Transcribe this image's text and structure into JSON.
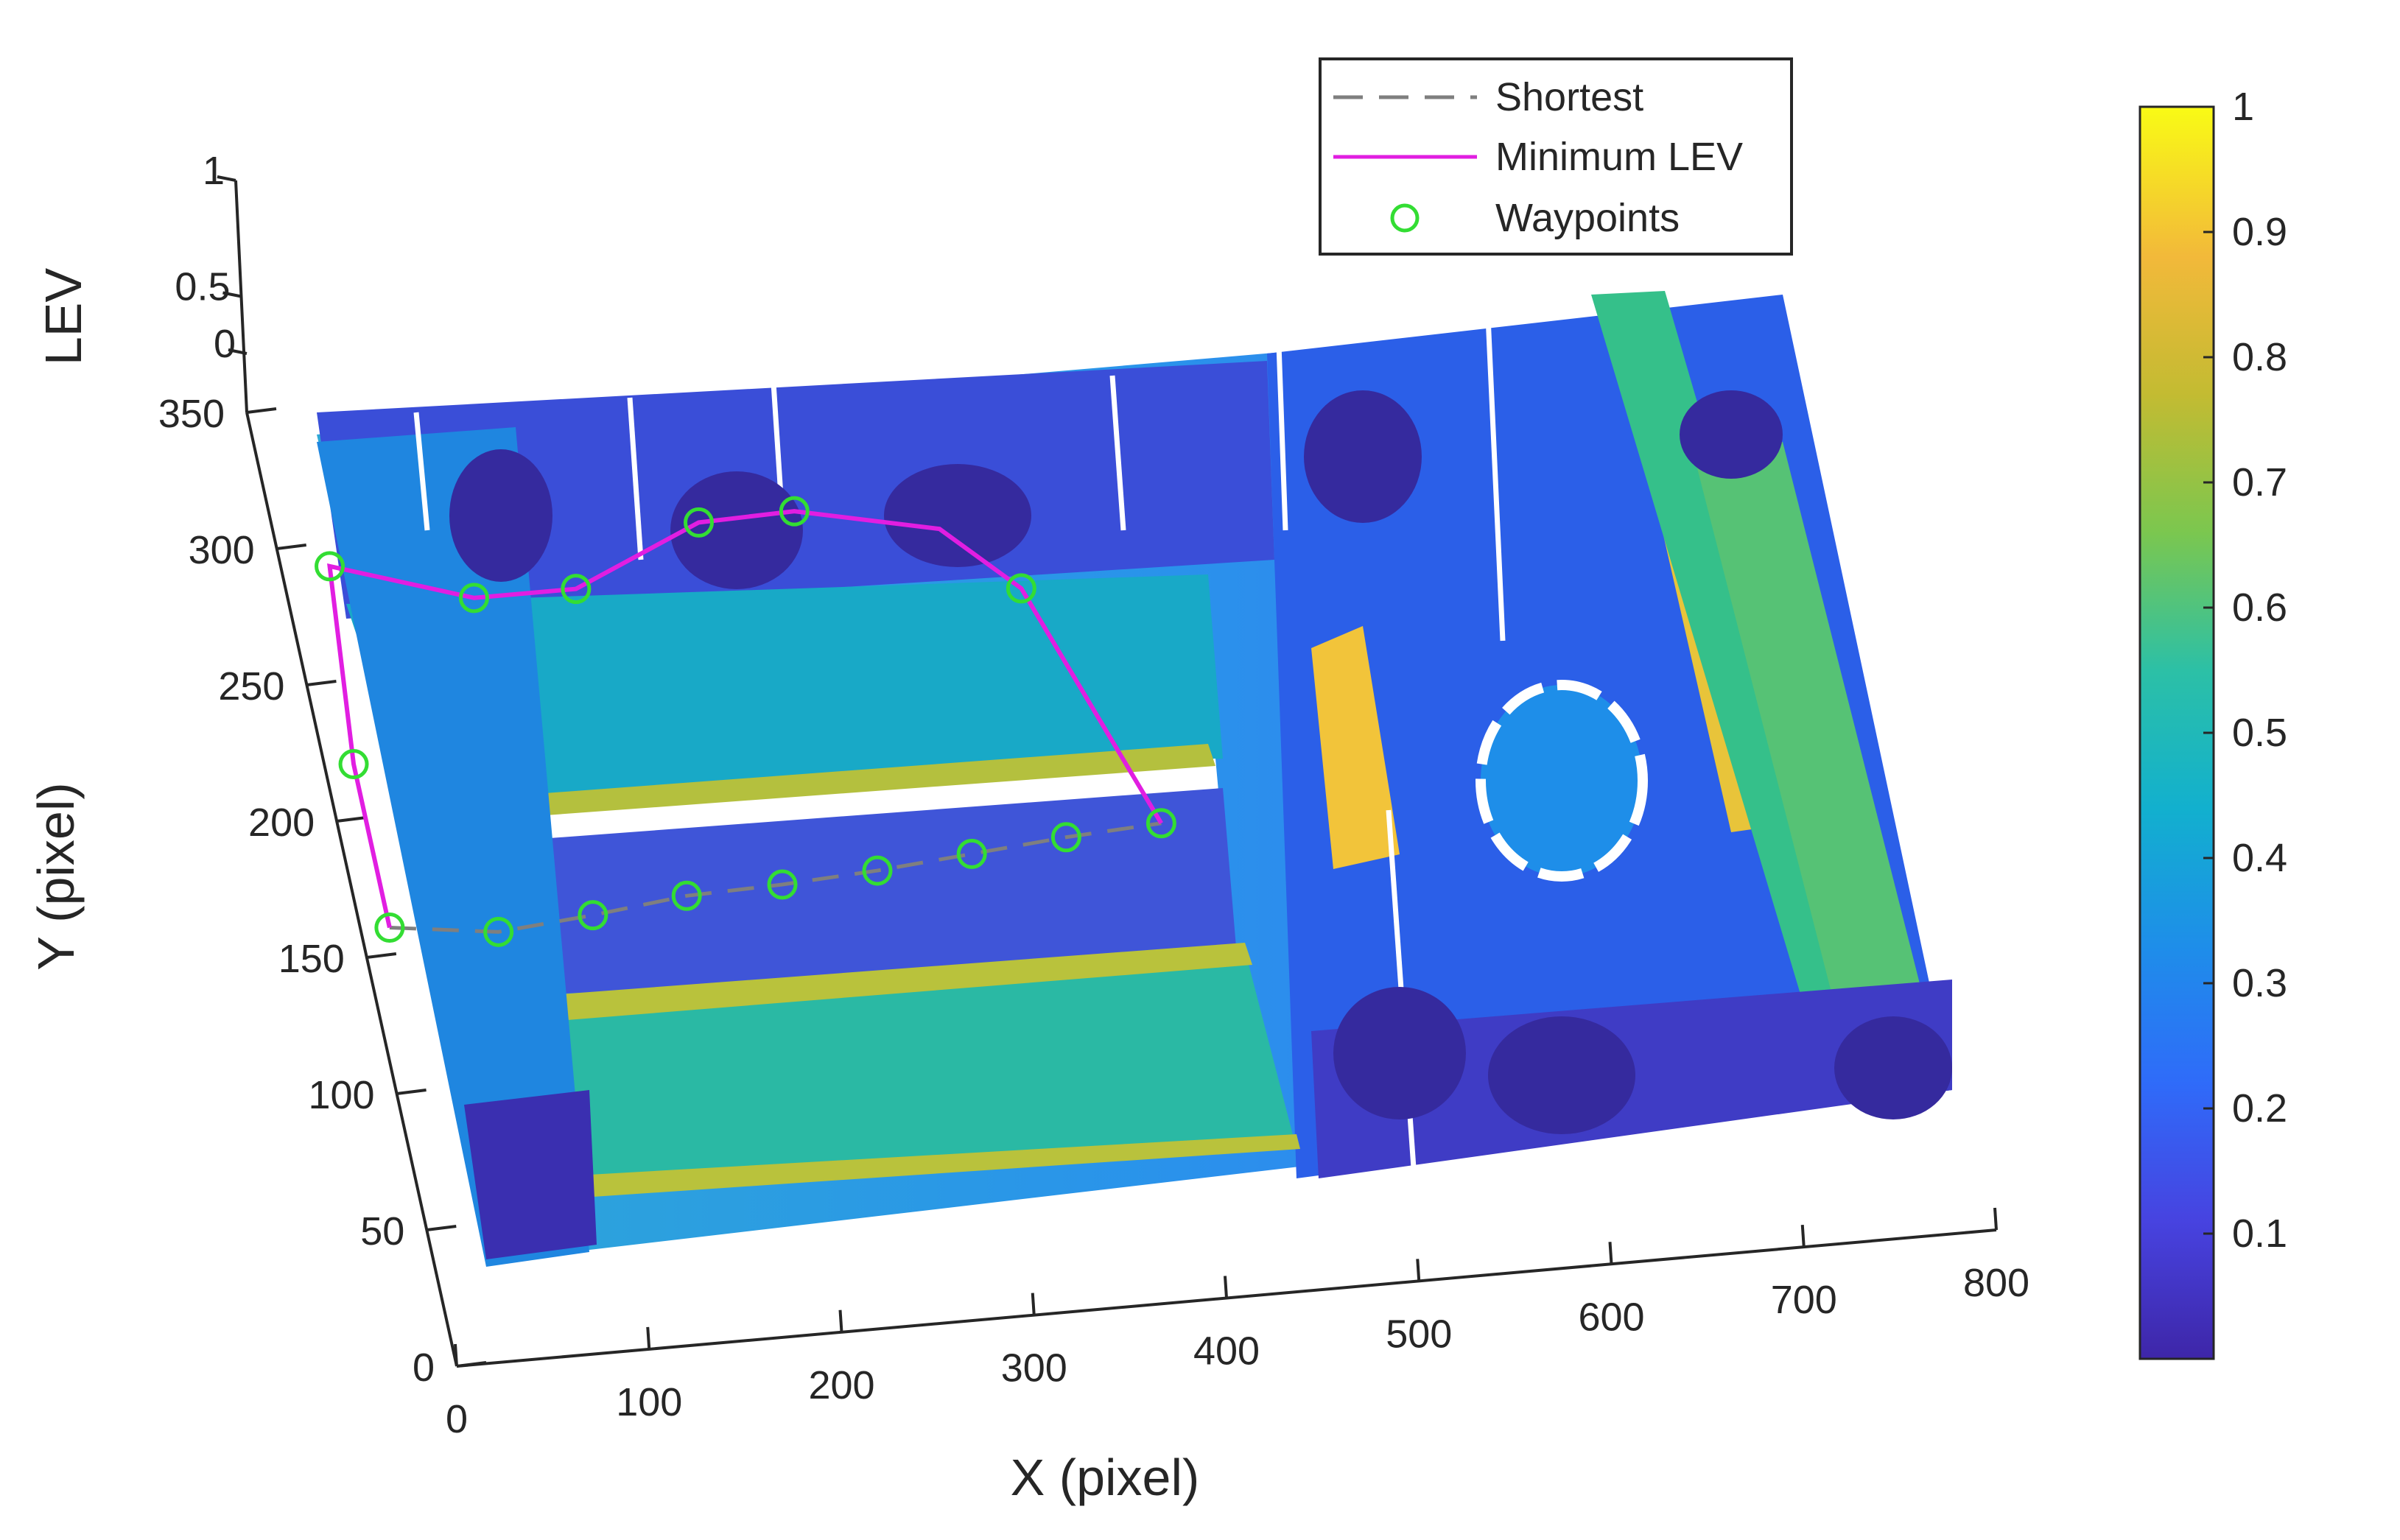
{
  "chart_data": {
    "type": "surface",
    "xlabel": "X (pixel)",
    "ylabel": "Y (pixel)",
    "zlabel": "LEV",
    "x_ticks": [
      "0",
      "100",
      "200",
      "300",
      "400",
      "500",
      "600",
      "700",
      "800"
    ],
    "y_ticks": [
      "0",
      "50",
      "100",
      "150",
      "200",
      "250",
      "300",
      "350"
    ],
    "z_ticks": [
      "0",
      "0.5",
      "1"
    ],
    "xlim": [
      0,
      800
    ],
    "ylim": [
      0,
      350
    ],
    "zlim": [
      0,
      1
    ],
    "colorbar": {
      "ticks": [
        "0.1",
        "0.2",
        "0.3",
        "0.4",
        "0.5",
        "0.6",
        "0.7",
        "0.8",
        "0.9",
        "1"
      ],
      "range": [
        0,
        1
      ],
      "colormap": [
        "#3e26a8",
        "#4743e0",
        "#2f6bf9",
        "#1e8ee9",
        "#12b0ce",
        "#2cc0a6",
        "#7bc74f",
        "#c3bb32",
        "#f2b93a",
        "#f9fb15"
      ]
    },
    "legend": {
      "position": "top-center",
      "entries": [
        {
          "label": "Shortest",
          "style": "dashed",
          "color": "#7f7f7f"
        },
        {
          "label": "Minimum LEV",
          "style": "solid",
          "color": "#e11ee1"
        },
        {
          "label": "Waypoints",
          "style": "circle-marker",
          "color": "#33dd33"
        }
      ]
    },
    "series": [
      {
        "name": "Shortest",
        "points": [
          [
            15,
            160
          ],
          [
            70,
            155
          ],
          [
            120,
            158
          ],
          [
            170,
            162
          ],
          [
            220,
            163
          ],
          [
            270,
            165
          ],
          [
            320,
            168
          ],
          [
            370,
            171
          ],
          [
            420,
            173
          ]
        ]
      },
      {
        "name": "Minimum LEV",
        "points": [
          [
            15,
            160
          ],
          [
            15,
            220
          ],
          [
            25,
            292
          ],
          [
            95,
            276
          ],
          [
            148,
            276
          ],
          [
            218,
            296
          ],
          [
            268,
            297
          ],
          [
            340,
            286
          ],
          [
            375,
            262
          ],
          [
            420,
            173
          ]
        ]
      },
      {
        "name": "Waypoints",
        "points": [
          [
            15,
            160
          ],
          [
            15,
            220
          ],
          [
            25,
            292
          ],
          [
            95,
            276
          ],
          [
            148,
            276
          ],
          [
            218,
            296
          ],
          [
            268,
            297
          ],
          [
            375,
            262
          ],
          [
            420,
            173
          ],
          [
            70,
            155
          ],
          [
            120,
            158
          ],
          [
            170,
            162
          ],
          [
            220,
            163
          ],
          [
            270,
            165
          ],
          [
            320,
            168
          ],
          [
            370,
            171
          ]
        ]
      }
    ]
  }
}
